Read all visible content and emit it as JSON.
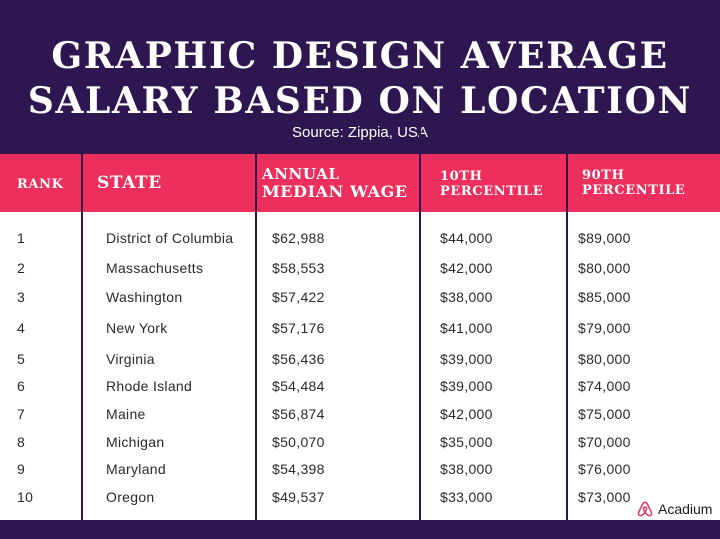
{
  "title_lines": [
    "GRAPHIC DESIGN AVERAGE",
    "SALARY BASED ON LOCATION"
  ],
  "source": "Source: Zippia, USA",
  "table": {
    "headers": {
      "rank": "RANK",
      "state": "STATE",
      "median": [
        "ANNUAL",
        "MEDIAN WAGE"
      ],
      "p10": [
        "10TH",
        "PERCENTILE"
      ],
      "p90": [
        "90TH",
        "PERCENTILE"
      ]
    },
    "rows": [
      {
        "rank": "1",
        "state": "District of Columbia",
        "median": "$62,988",
        "p10": "$44,000",
        "p90": "$89,000"
      },
      {
        "rank": "2",
        "state": "Massachusetts",
        "median": "$58,553",
        "p10": "$42,000",
        "p90": "$80,000"
      },
      {
        "rank": "3",
        "state": "Washington",
        "median": "$57,422",
        "p10": "$38,000",
        "p90": "$85,000"
      },
      {
        "rank": "4",
        "state": "New York",
        "median": "$57,176",
        "p10": "$41,000",
        "p90": "$79,000"
      },
      {
        "rank": "5",
        "state": "Virginia",
        "median": "$56,436",
        "p10": "$39,000",
        "p90": "$80,000"
      },
      {
        "rank": "6",
        "state": "Rhode Island",
        "median": "$54,484",
        "p10": "$39,000",
        "p90": "$74,000"
      },
      {
        "rank": "7",
        "state": "Maine",
        "median": "$56,874",
        "p10": "$42,000",
        "p90": "$75,000"
      },
      {
        "rank": "8",
        "state": "Michigan",
        "median": "$50,070",
        "p10": "$35,000",
        "p90": "$70,000"
      },
      {
        "rank": "9",
        "state": "Maryland",
        "median": "$54,398",
        "p10": "$38,000",
        "p90": "$76,000"
      },
      {
        "rank": "10",
        "state": "Oregon",
        "median": "$49,537",
        "p10": "$33,000",
        "p90": "$73,000"
      }
    ]
  },
  "brand": {
    "name": "Acadium",
    "icon": "airbnb-logo-icon"
  },
  "colors": {
    "background": "#2e1750",
    "header": "#ec2f5d",
    "text": "#2a2a2a"
  }
}
